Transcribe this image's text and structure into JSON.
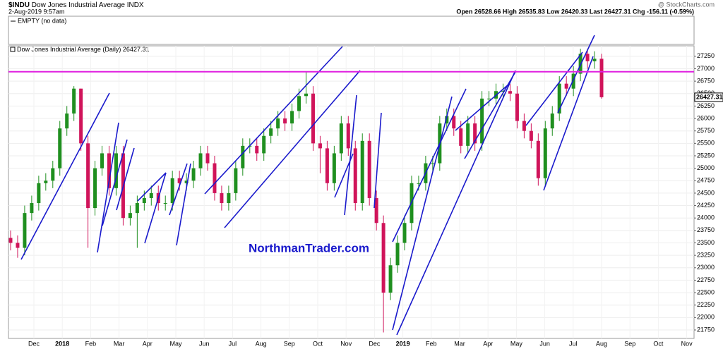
{
  "chart_data": {
    "type": "candlestick",
    "title": "$INDU",
    "subtitle": "Dow Jones Industrial Average INDX",
    "timestamp": "2-Aug-2019 9:57am",
    "quote": "Open 26528.66 High 26535.83 Low 26420.33 Last 26427.31 Chg -156.11 (-0.59%)",
    "source": "@ StockCharts.com",
    "empty_panel": "EMPTY (no data)",
    "series_label": "Dow Jones Industrial Average (Daily)",
    "watermark": "NorthmanTrader.com",
    "xtick_labels": [
      "Dec",
      "2018",
      "Feb",
      "Mar",
      "Apr",
      "May",
      "Jun",
      "Jul",
      "Aug",
      "Sep",
      "Oct",
      "Nov",
      "Dec",
      "2019",
      "Feb",
      "Mar",
      "Apr",
      "May",
      "Jun",
      "Jul",
      "Aug",
      "Sep",
      "Oct",
      "Nov"
    ],
    "open": [
      23600,
      23500,
      23400,
      24100,
      24300,
      24700,
      24750,
      25000,
      25800,
      26100,
      26600,
      25500,
      24200,
      25000,
      25300,
      24600,
      25300,
      24000,
      24100,
      24300,
      24400,
      24500,
      24300,
      24300,
      24800,
      24700,
      24750,
      25000,
      25300,
      25100,
      24500,
      24300,
      24500,
      25000,
      25450,
      25450,
      25300,
      25650,
      25800,
      26000,
      25900,
      26150,
      26450,
      26500,
      25500,
      25400,
      24700,
      25300,
      25900,
      25400,
      24300,
      25550,
      24400,
      23900,
      22500,
      23050,
      23500,
      23900,
      24700,
      24700,
      25100,
      25100,
      25900,
      26050,
      25800,
      25450,
      25900,
      25500,
      26400,
      26400,
      26550,
      26550,
      26500,
      25950,
      25750,
      25550,
      24800,
      25800,
      26100,
      26700,
      26600,
      26900,
      27300,
      27150,
      27200
    ],
    "high": [
      23750,
      23650,
      24250,
      24450,
      24850,
      24900,
      25150,
      25950,
      26250,
      26650,
      26600,
      25650,
      25150,
      25450,
      25450,
      25450,
      25450,
      24250,
      24450,
      24550,
      24650,
      24650,
      24450,
      24950,
      24950,
      24900,
      25150,
      25450,
      25450,
      25250,
      24650,
      24650,
      25150,
      25600,
      25600,
      25600,
      25800,
      25950,
      26150,
      26150,
      26300,
      26600,
      26950,
      26650,
      25650,
      25550,
      25450,
      26050,
      26050,
      25550,
      25700,
      25700,
      24550,
      24050,
      23200,
      23650,
      24050,
      24850,
      24850,
      25250,
      25250,
      26050,
      26200,
      26200,
      25950,
      26050,
      26050,
      26550,
      26550,
      26700,
      26700,
      26700,
      26650,
      26100,
      25900,
      25700,
      25950,
      26250,
      26850,
      26850,
      27050,
      27400,
      27400,
      27350,
      27300
    ],
    "low": [
      23350,
      23200,
      23250,
      23950,
      24150,
      24550,
      24600,
      24850,
      25650,
      25950,
      25350,
      23400,
      24050,
      24850,
      24450,
      24450,
      23850,
      23850,
      23400,
      24150,
      24250,
      24150,
      24150,
      24150,
      24550,
      24550,
      24600,
      24850,
      24950,
      24350,
      24150,
      24150,
      24350,
      24850,
      25300,
      25150,
      25150,
      25500,
      25650,
      25750,
      25750,
      26000,
      26300,
      25350,
      24900,
      24550,
      24550,
      25150,
      25250,
      24150,
      24150,
      24250,
      23750,
      21700,
      22350,
      22900,
      23350,
      23750,
      24550,
      24550,
      24950,
      24950,
      25750,
      25650,
      25300,
      25300,
      25350,
      25350,
      26250,
      26250,
      26400,
      26350,
      25800,
      25600,
      25400,
      24650,
      24650,
      25650,
      25950,
      26450,
      26450,
      26750,
      27000,
      27000,
      26400
    ],
    "close": [
      23500,
      23400,
      24100,
      24300,
      24700,
      24750,
      25000,
      25800,
      26100,
      26600,
      25500,
      24200,
      25000,
      25300,
      24600,
      25300,
      24000,
      24100,
      24300,
      24400,
      24500,
      24300,
      24300,
      24800,
      24700,
      24750,
      25000,
      25300,
      25100,
      24500,
      24300,
      24500,
      25000,
      25450,
      25450,
      25300,
      25650,
      25800,
      26000,
      25900,
      26150,
      26450,
      26500,
      25500,
      25400,
      24700,
      25300,
      25900,
      25400,
      24300,
      25550,
      24400,
      23900,
      22500,
      23050,
      23500,
      23900,
      24700,
      24700,
      25100,
      25100,
      25900,
      26050,
      25800,
      25450,
      25900,
      25500,
      26400,
      26400,
      26550,
      26550,
      26500,
      25950,
      25750,
      25550,
      24800,
      25800,
      26100,
      26700,
      26600,
      26900,
      27300,
      27150,
      27200,
      26427.31
    ],
    "up_color": "#1f8f1f",
    "down_color": "#d0145a",
    "reference_line": 26940,
    "reference_color": "#e020e0",
    "ylim": [
      21580,
      27460
    ],
    "yticks": [
      21750,
      22000,
      22250,
      22500,
      22750,
      23000,
      23250,
      23500,
      23750,
      24000,
      24250,
      24500,
      24750,
      25000,
      25250,
      25500,
      25750,
      26000,
      26250,
      26500,
      26750,
      27000,
      27250
    ]
  }
}
